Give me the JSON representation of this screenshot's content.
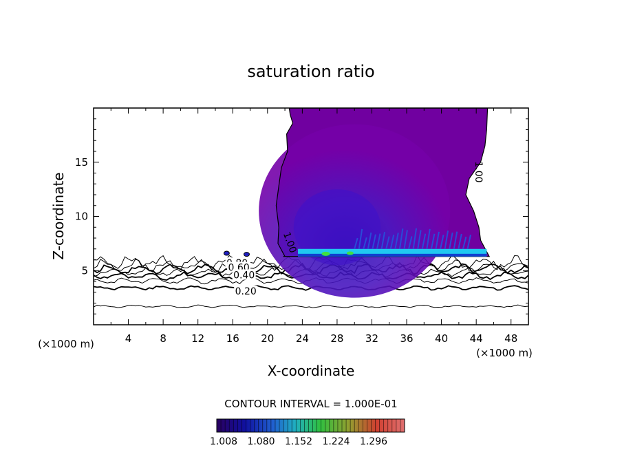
{
  "chart_data": {
    "type": "contour",
    "title": "saturation ratio",
    "xlabel": "X-coordinate",
    "ylabel": "Z-coordinate",
    "x_unit_left": "(×1000 m)",
    "x_unit_right": "(×1000 m)",
    "xlim": [
      0,
      50
    ],
    "ylim": [
      0,
      20
    ],
    "x_ticks": [
      "4",
      "8",
      "12",
      "16",
      "20",
      "24",
      "28",
      "32",
      "36",
      "40",
      "44",
      "48"
    ],
    "y_ticks": [
      "5",
      "10",
      "15"
    ],
    "x_tick_values": [
      4,
      8,
      12,
      16,
      20,
      24,
      28,
      32,
      36,
      40,
      44,
      48
    ],
    "y_tick_values": [
      5,
      10,
      15
    ],
    "contour_interval_text": "CONTOUR INTERVAL = 1.000E-01",
    "colorbar_labels": [
      "1.008",
      "1.080",
      "1.152",
      "1.224",
      "1.296"
    ],
    "contour_labels": [
      {
        "text": "0.80",
        "x": 16.5,
        "y": 5.7
      },
      {
        "text": "0.60",
        "x": 16.7,
        "y": 5.3
      },
      {
        "text": "0.40",
        "x": 17.3,
        "y": 4.6
      },
      {
        "text": "0.20",
        "x": 17.5,
        "y": 3.1
      },
      {
        "text": "1.00",
        "x": 22.6,
        "y": 7.6
      },
      {
        "text": "1.00",
        "x": 44.3,
        "y": 14.1
      }
    ],
    "background_levels": [
      0.2,
      0.3,
      0.4,
      0.5,
      0.6,
      0.7,
      0.8,
      0.9
    ],
    "supersaturated_region": {
      "x_range": [
        21.8,
        45.5
      ],
      "z_range": [
        6.3,
        20
      ],
      "value_min": 1.008
    },
    "colors": {
      "low": "#7000a0",
      "mid": "#4010c8",
      "band_cyan": "#20c8f0",
      "band_green": "#40e040"
    }
  }
}
